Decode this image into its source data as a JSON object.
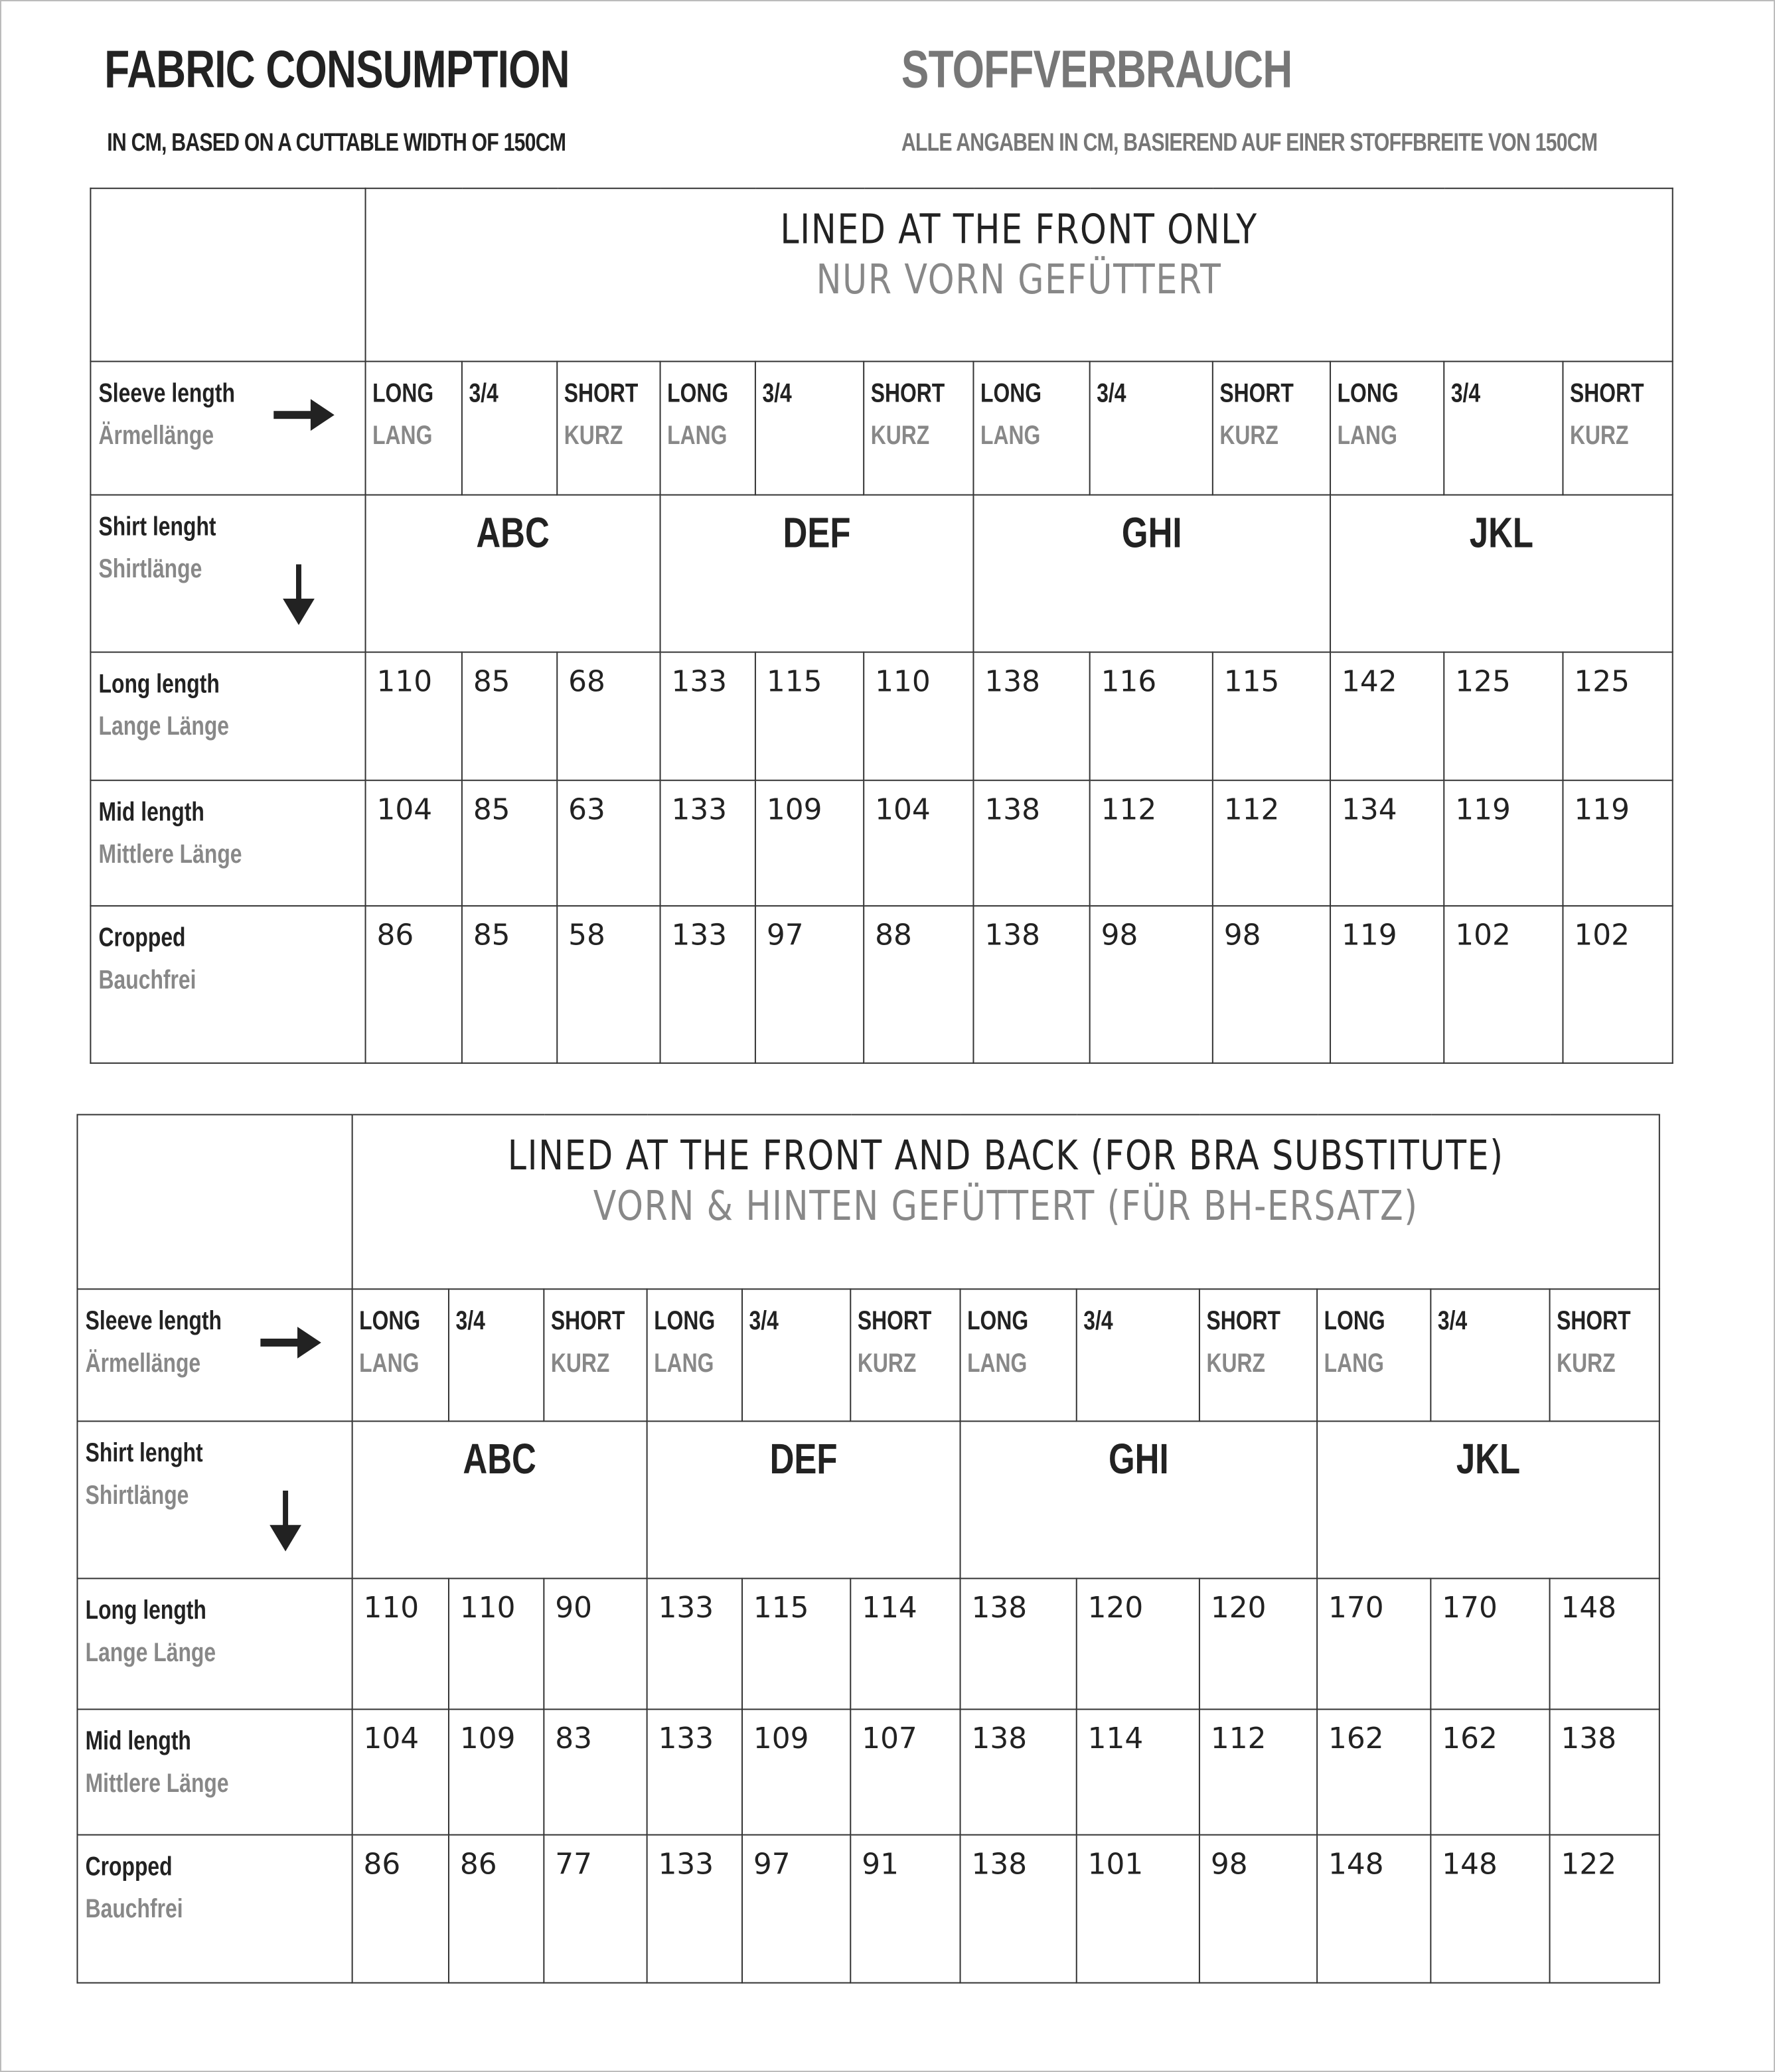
{
  "header": {
    "title_en": "Fabric Consumption",
    "title_de": "Stoffverbrauch",
    "subtitle_en": "In cm, based on a cuttable width of 150cm",
    "subtitle_de": "Alle Angaben in cm, basierend auf einer Stoffbreite von 150cm"
  },
  "labels": {
    "sleeve_en": "Sleeve length",
    "sleeve_de": "Ärmellänge",
    "shirt_en": "Shirt lenght",
    "shirt_de": "Shirtlänge"
  },
  "sleeves": [
    {
      "en": "LONG",
      "de": "LANG"
    },
    {
      "en": "3/4",
      "de": ""
    },
    {
      "en": "SHORT",
      "de": "KURZ"
    }
  ],
  "sizes": [
    "ABC",
    "DEF",
    "GHI",
    "JKL"
  ],
  "tables": [
    {
      "title_en": "LINED AT THE FRONT ONLY",
      "title_de": "NUR VORN GEFÜTTERT",
      "rows": [
        {
          "en": "Long length",
          "de": "Lange Länge",
          "values": [
            "110",
            "85",
            "68",
            "133",
            "115",
            "110",
            "138",
            "116",
            "115",
            "142",
            "125",
            "125"
          ]
        },
        {
          "en": "Mid length",
          "de": "Mittlere Länge",
          "values": [
            "104",
            "85",
            "63",
            "133",
            "109",
            "104",
            "138",
            "112",
            "112",
            "134",
            "119",
            "119"
          ]
        },
        {
          "en": "Cropped",
          "de": "Bauchfrei",
          "values": [
            "86",
            "85",
            "58",
            "133",
            "97",
            "88",
            "138",
            "98",
            "98",
            "119",
            "102",
            "102"
          ]
        }
      ]
    },
    {
      "title_en": "LINED AT THE FRONT AND BACK (FOR BRA SUBSTITUTE)",
      "title_de": "VORN & HINTEN GEFÜTTERT (FÜR BH-ERSATZ)",
      "rows": [
        {
          "en": "Long length",
          "de": "Lange Länge",
          "values": [
            "110",
            "110",
            "90",
            "133",
            "115",
            "114",
            "138",
            "120",
            "120",
            "170",
            "170",
            "148"
          ]
        },
        {
          "en": "Mid length",
          "de": "Mittlere Länge",
          "values": [
            "104",
            "109",
            "83",
            "133",
            "109",
            "107",
            "138",
            "114",
            "112",
            "162",
            "162",
            "138"
          ]
        },
        {
          "en": "Cropped",
          "de": "Bauchfrei",
          "values": [
            "86",
            "86",
            "77",
            "133",
            "97",
            "91",
            "138",
            "101",
            "98",
            "148",
            "148",
            "122"
          ]
        }
      ]
    }
  ]
}
